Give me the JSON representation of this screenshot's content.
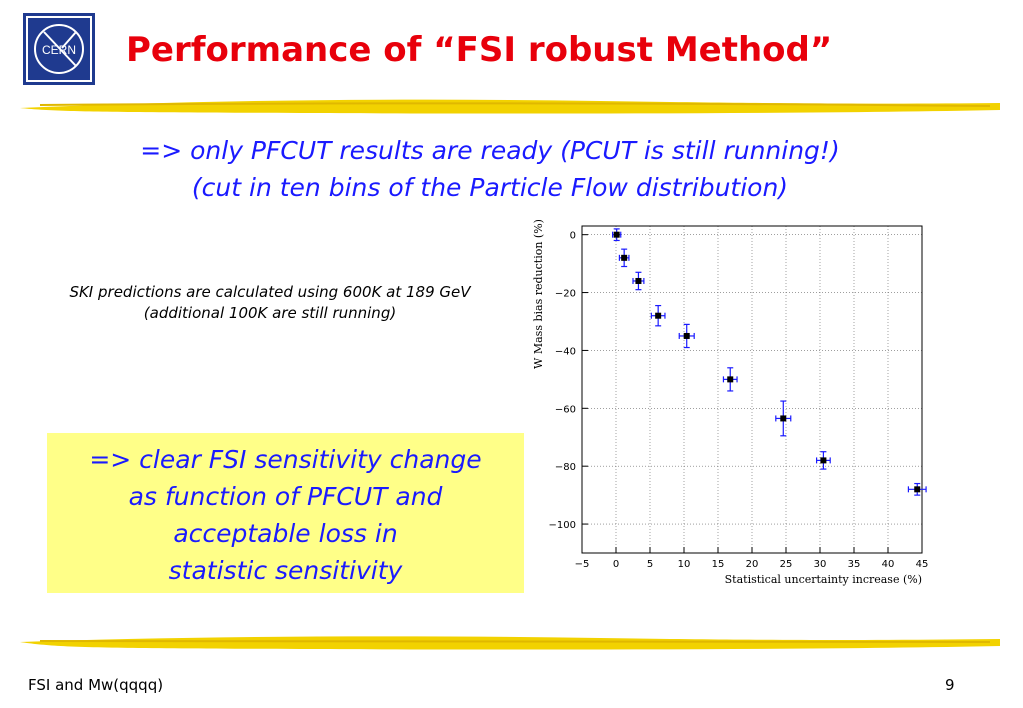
{
  "slide": {
    "title": "Performance of “FSI robust Method”",
    "subtitle_line1": "=> only PFCUT results are ready (PCUT is still running!)",
    "subtitle_line2": "(cut in ten bins of the Particle Flow distribution)",
    "note_line1": "SKI predictions are calculated using 600K at 189 GeV",
    "note_line2": "(additional 100K are still running)",
    "callout": [
      "=> clear FSI sensitivity change",
      "as function of PFCUT and",
      "acceptable loss in",
      "statistic sensitivity"
    ],
    "logo_text": "CERN",
    "footer_left": "FSI and Mw(qqqq)",
    "page_number": "9"
  },
  "colors": {
    "title": "#e8000b",
    "text_blue": "#1a1aff",
    "callout_bg": "#ffff88",
    "brush": "#f2d200",
    "logo": "#1f3a8f",
    "error_bar": "#1a1aff"
  },
  "icons": {
    "logo": "cern-logo-icon"
  },
  "chart_data": {
    "type": "scatter",
    "xlabel": "Statistical uncertainty increase (%)",
    "ylabel": "W Mass bias reduction (%)",
    "xlim": [
      -5,
      45
    ],
    "ylim": [
      -110,
      3
    ],
    "xticks": [
      -5,
      0,
      5,
      10,
      15,
      20,
      25,
      30,
      35,
      40,
      45
    ],
    "yticks": [
      0,
      -20,
      -40,
      -60,
      -80,
      -100
    ],
    "grid": true,
    "points": [
      {
        "x": 0.1,
        "y": 0,
        "xerr": 0.6,
        "yerr": 2
      },
      {
        "x": 1.2,
        "y": -8,
        "xerr": 0.7,
        "yerr": 3
      },
      {
        "x": 3.3,
        "y": -16,
        "xerr": 0.8,
        "yerr": 3
      },
      {
        "x": 6.2,
        "y": -28,
        "xerr": 1.0,
        "yerr": 3.5
      },
      {
        "x": 10.4,
        "y": -35,
        "xerr": 1.1,
        "yerr": 4
      },
      {
        "x": 16.8,
        "y": -50,
        "xerr": 1.0,
        "yerr": 4
      },
      {
        "x": 24.6,
        "y": -63.5,
        "xerr": 1.1,
        "yerr": 6
      },
      {
        "x": 30.5,
        "y": -78,
        "xerr": 1.0,
        "yerr": 3
      },
      {
        "x": 44.3,
        "y": -88,
        "xerr": 1.3,
        "yerr": 2
      }
    ]
  }
}
